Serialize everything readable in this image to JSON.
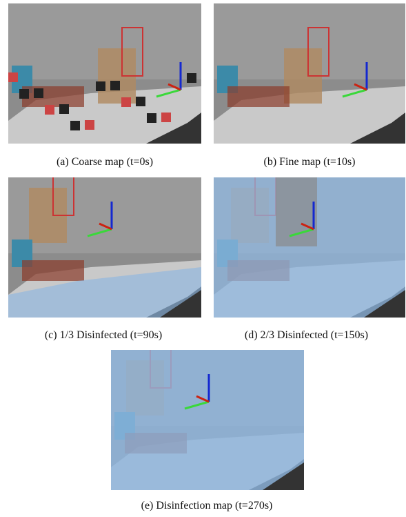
{
  "panels": [
    {
      "caption": "(a) Coarse map (t=0s)"
    },
    {
      "caption": "(b) Fine map (t=10s)"
    },
    {
      "caption": "(c) 1/3 Disinfected (t=90s)"
    },
    {
      "caption": "(d) 2/3 Disinfected (t=150s)"
    },
    {
      "caption": "(e) Disinfection map (t=270s)"
    }
  ]
}
